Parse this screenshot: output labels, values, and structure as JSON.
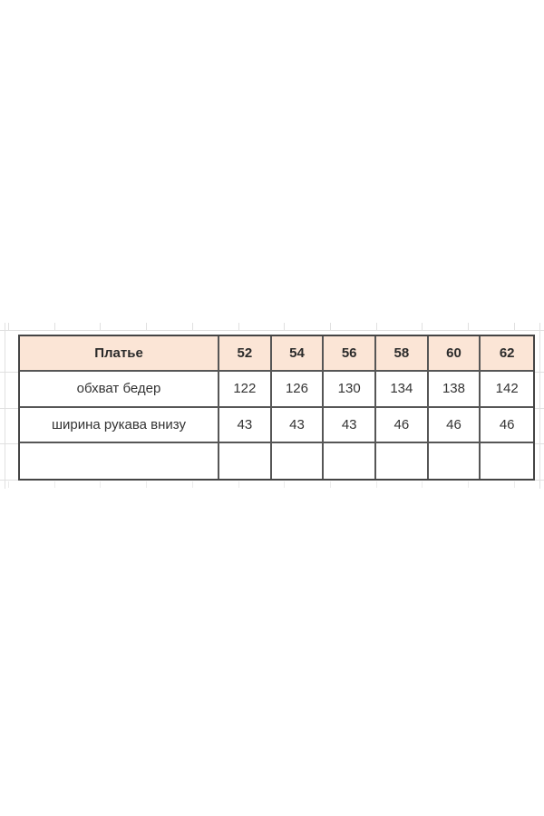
{
  "chart_data": {
    "type": "table",
    "title": "Платье",
    "categories": [
      "52",
      "54",
      "56",
      "58",
      "60",
      "62"
    ],
    "series": [
      {
        "name": "обхват бедер",
        "values": [
          122,
          126,
          130,
          134,
          138,
          142
        ]
      },
      {
        "name": "ширина рукава внизу",
        "values": [
          43,
          43,
          43,
          46,
          46,
          46
        ]
      }
    ],
    "layout_hints": {
      "header_fill": "#fbe5d6",
      "border_color": "#454545",
      "empty_trailing_row": true,
      "background": "spreadsheet with faint gridlines"
    }
  },
  "table": {
    "product_label": "Платье",
    "sizes": [
      "52",
      "54",
      "56",
      "58",
      "60",
      "62"
    ],
    "rows": [
      {
        "label": "обхват бедер",
        "values": [
          "122",
          "126",
          "130",
          "134",
          "138",
          "142"
        ]
      },
      {
        "label": "ширина рукава внизу",
        "values": [
          "43",
          "43",
          "43",
          "46",
          "46",
          "46"
        ]
      },
      {
        "label": "",
        "values": [
          "",
          "",
          "",
          "",
          "",
          ""
        ]
      }
    ]
  },
  "colors": {
    "background": "#ffffff",
    "header_fill": "#fbe5d6",
    "table_border": "#454545",
    "inner_border": "#565656",
    "text": "#333333",
    "header_text": "#2b2b2b",
    "faint_grid": "#e0e0e0"
  }
}
